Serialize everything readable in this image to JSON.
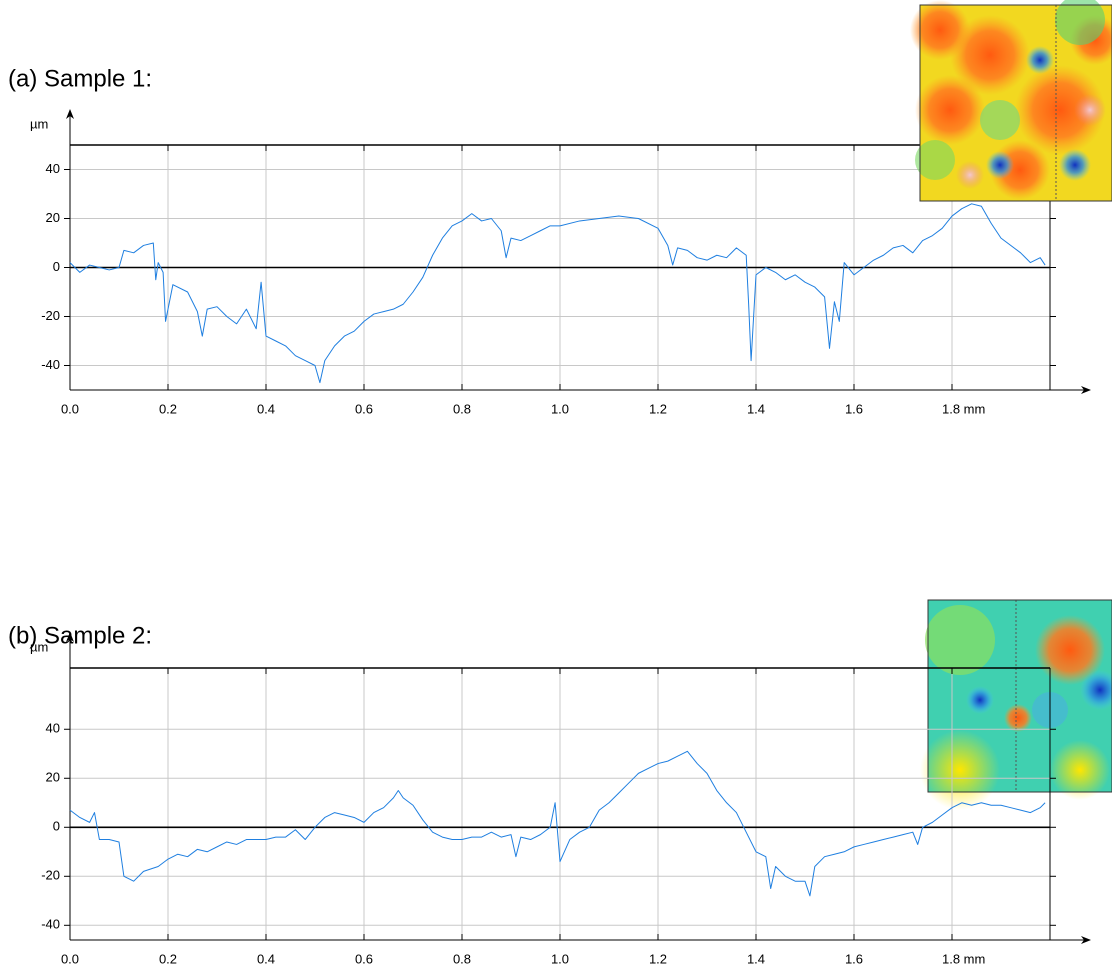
{
  "chart_data": [
    {
      "type": "line",
      "title": "(a)  Sample 1:",
      "ylabel": "µm",
      "color": "#1f7fe0",
      "grid": true,
      "xlim": [
        0,
        2.0
      ],
      "ylim": [
        -50,
        50
      ],
      "xticks": [
        {
          "value": 0,
          "label": "0.0"
        },
        0.2,
        0.4,
        0.6,
        0.8,
        {
          "value": 1,
          "label": "1.0"
        },
        1.2,
        1.4,
        1.6,
        {
          "value": 1.8,
          "label": "1.8 mm"
        }
      ],
      "yticks": [
        40,
        20,
        0,
        -20,
        -40
      ],
      "x": [
        0,
        0.02,
        0.04,
        0.06,
        0.08,
        0.1,
        0.11,
        0.13,
        0.15,
        0.17,
        0.175,
        0.18,
        0.19,
        0.195,
        0.21,
        0.24,
        0.26,
        0.27,
        0.28,
        0.3,
        0.32,
        0.34,
        0.36,
        0.38,
        0.39,
        0.4,
        0.42,
        0.44,
        0.46,
        0.48,
        0.5,
        0.51,
        0.52,
        0.54,
        0.56,
        0.58,
        0.6,
        0.62,
        0.64,
        0.66,
        0.68,
        0.7,
        0.72,
        0.74,
        0.76,
        0.78,
        0.8,
        0.82,
        0.84,
        0.86,
        0.88,
        0.89,
        0.9,
        0.92,
        0.94,
        0.96,
        0.98,
        1.0,
        1.04,
        1.08,
        1.12,
        1.16,
        1.2,
        1.22,
        1.23,
        1.24,
        1.26,
        1.28,
        1.3,
        1.32,
        1.34,
        1.36,
        1.38,
        1.385,
        1.39,
        1.4,
        1.42,
        1.44,
        1.46,
        1.48,
        1.5,
        1.52,
        1.54,
        1.55,
        1.56,
        1.57,
        1.58,
        1.6,
        1.62,
        1.64,
        1.66,
        1.68,
        1.7,
        1.72,
        1.74,
        1.76,
        1.78,
        1.8,
        1.82,
        1.84,
        1.86,
        1.88,
        1.9,
        1.94,
        1.96,
        1.98,
        1.99
      ],
      "values": [
        2,
        -2,
        1,
        0,
        -1,
        0,
        7,
        6,
        9,
        10,
        -5,
        2,
        -2,
        -22,
        -7,
        -10,
        -18,
        -28,
        -17,
        -16,
        -20,
        -23,
        -17,
        -25,
        -6,
        -28,
        -30,
        -32,
        -36,
        -38,
        -40,
        -47,
        -38,
        -32,
        -28,
        -26,
        -22,
        -19,
        -18,
        -17,
        -15,
        -10,
        -4,
        5,
        12,
        17,
        19,
        22,
        19,
        20,
        15,
        4,
        12,
        11,
        13,
        15,
        17,
        17,
        19,
        20,
        21,
        20,
        16,
        9,
        1,
        8,
        7,
        4,
        3,
        5,
        4,
        8,
        5,
        -15,
        -38,
        -3,
        0,
        -2,
        -5,
        -3,
        -6,
        -8,
        -12,
        -33,
        -14,
        -22,
        2,
        -3,
        0,
        3,
        5,
        8,
        9,
        6,
        11,
        13,
        16,
        21,
        24,
        26,
        25,
        18,
        12,
        6,
        2,
        4,
        1
      ]
    },
    {
      "type": "line",
      "title": "(b)  Sample 2:",
      "ylabel": "µm",
      "color": "#1f7fe0",
      "grid": true,
      "xlim": [
        0,
        2.0
      ],
      "ylim": [
        -46,
        65
      ],
      "xticks": [
        {
          "value": 0,
          "label": "0.0"
        },
        0.2,
        0.4,
        0.6,
        0.8,
        {
          "value": 1,
          "label": "1.0"
        },
        1.2,
        1.4,
        1.6,
        {
          "value": 1.8,
          "label": "1.8 mm"
        }
      ],
      "yticks": [
        40,
        20,
        0,
        -20,
        -40
      ],
      "x": [
        0,
        0.02,
        0.04,
        0.05,
        0.06,
        0.08,
        0.1,
        0.11,
        0.13,
        0.15,
        0.18,
        0.2,
        0.22,
        0.24,
        0.26,
        0.28,
        0.3,
        0.32,
        0.34,
        0.36,
        0.38,
        0.4,
        0.42,
        0.44,
        0.46,
        0.48,
        0.5,
        0.52,
        0.54,
        0.56,
        0.58,
        0.6,
        0.62,
        0.64,
        0.66,
        0.67,
        0.68,
        0.7,
        0.72,
        0.74,
        0.76,
        0.78,
        0.8,
        0.82,
        0.84,
        0.86,
        0.88,
        0.9,
        0.91,
        0.92,
        0.94,
        0.96,
        0.98,
        0.99,
        1.0,
        1.02,
        1.04,
        1.06,
        1.08,
        1.1,
        1.12,
        1.14,
        1.16,
        1.18,
        1.2,
        1.22,
        1.24,
        1.26,
        1.28,
        1.3,
        1.32,
        1.34,
        1.36,
        1.38,
        1.4,
        1.42,
        1.43,
        1.44,
        1.46,
        1.48,
        1.5,
        1.51,
        1.52,
        1.54,
        1.56,
        1.58,
        1.6,
        1.62,
        1.64,
        1.66,
        1.68,
        1.7,
        1.72,
        1.73,
        1.74,
        1.76,
        1.78,
        1.8,
        1.82,
        1.84,
        1.86,
        1.88,
        1.9,
        1.92,
        1.94,
        1.96,
        1.98,
        1.99
      ],
      "values": [
        7,
        4,
        2,
        6,
        -5,
        -5,
        -6,
        -20,
        -22,
        -18,
        -16,
        -13,
        -11,
        -12,
        -9,
        -10,
        -8,
        -6,
        -7,
        -5,
        -5,
        -5,
        -4,
        -4,
        -1,
        -5,
        0,
        4,
        6,
        5,
        4,
        2,
        6,
        8,
        12,
        15,
        12,
        9,
        3,
        -2,
        -4,
        -5,
        -5,
        -4,
        -4,
        -2,
        -4,
        -3,
        -12,
        -4,
        -5,
        -3,
        0,
        10,
        -14,
        -5,
        -2,
        0,
        7,
        10,
        14,
        18,
        22,
        24,
        26,
        27,
        29,
        31,
        26,
        22,
        15,
        10,
        6,
        -2,
        -10,
        -12,
        -25,
        -16,
        -20,
        -22,
        -22,
        -28,
        -16,
        -12,
        -11,
        -10,
        -8,
        -7,
        -6,
        -5,
        -4,
        -3,
        -2,
        -7,
        0,
        2,
        5,
        8,
        10,
        9,
        10,
        9,
        9,
        8,
        7,
        6,
        8,
        10
      ]
    }
  ]
}
